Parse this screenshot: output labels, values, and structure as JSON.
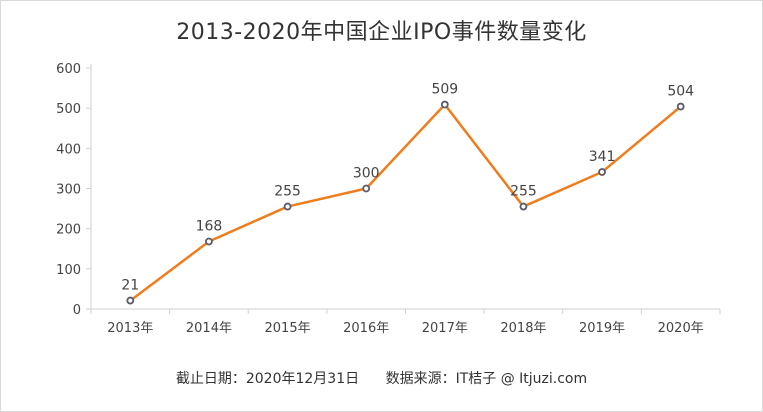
{
  "chart_data": {
    "type": "line",
    "title": "2013-2020年中国企业IPO事件数量变化",
    "categories": [
      "2013年",
      "2014年",
      "2015年",
      "2016年",
      "2017年",
      "2018年",
      "2019年",
      "2020年"
    ],
    "series": [
      {
        "values": [
          21,
          168,
          255,
          300,
          509,
          255,
          341,
          504
        ]
      }
    ],
    "ylim": [
      0,
      600
    ],
    "yticks": [
      0,
      100,
      200,
      300,
      400,
      500,
      600
    ],
    "grid": false,
    "line_color": "#f07d1d",
    "marker_color": "#5a5a6a"
  },
  "footer": {
    "date_text": "截止日期：2020年12月31日",
    "source_text": "数据来源：IT桔子 @ Itjuzi.com"
  }
}
